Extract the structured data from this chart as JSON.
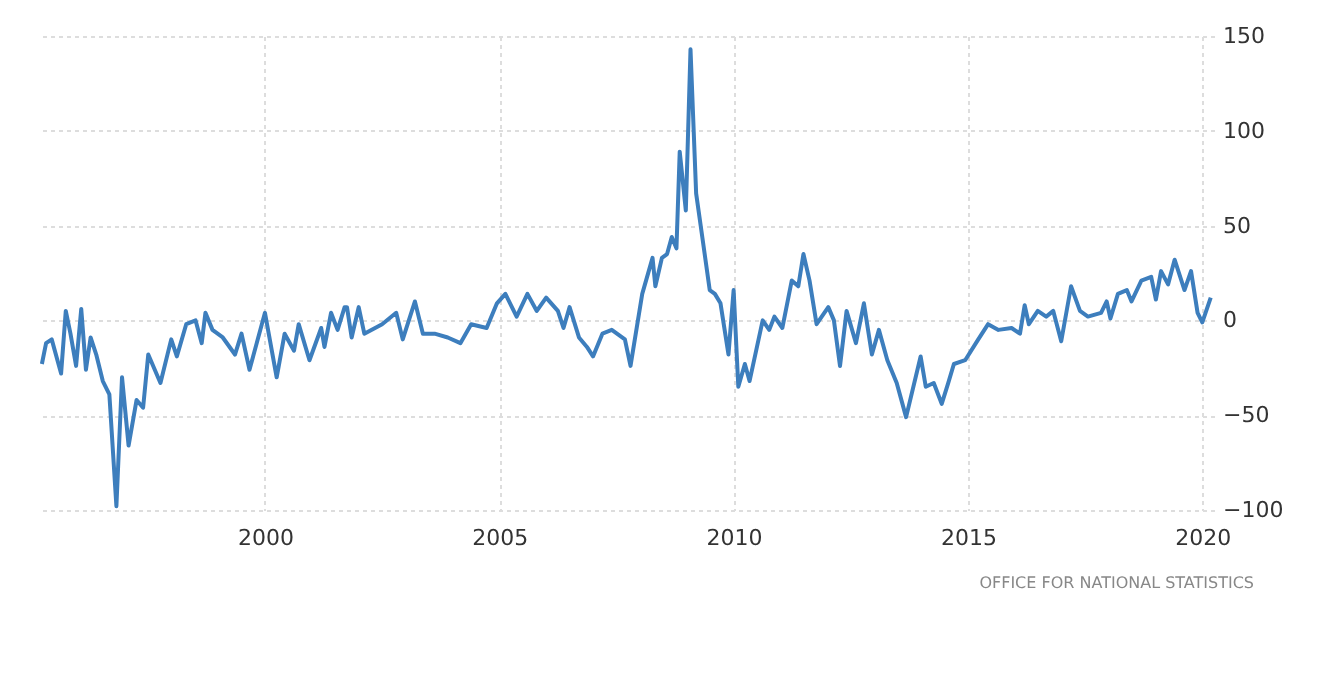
{
  "chart_data": {
    "type": "line",
    "x": [
      1995.24,
      1995.33,
      1995.45,
      1995.65,
      1995.75,
      1995.85,
      1995.97,
      1996.08,
      1996.18,
      1996.28,
      1996.4,
      1996.54,
      1996.68,
      1996.83,
      1996.95,
      1997.09,
      1997.26,
      1997.4,
      1997.51,
      1997.77,
      1998.0,
      1998.12,
      1998.32,
      1998.52,
      1998.65,
      1998.73,
      1998.88,
      1999.1,
      1999.36,
      1999.5,
      1999.67,
      2000.0,
      2000.25,
      2000.42,
      2000.62,
      2000.72,
      2000.95,
      2001.2,
      2001.27,
      2001.41,
      2001.55,
      2001.7,
      2001.75,
      2001.85,
      2002.0,
      2002.12,
      2002.5,
      2002.8,
      2002.94,
      2003.2,
      2003.37,
      2003.62,
      2003.9,
      2004.17,
      2004.4,
      2004.73,
      2004.95,
      2005.13,
      2005.37,
      2005.6,
      2005.8,
      2006.0,
      2006.25,
      2006.37,
      2006.5,
      2006.7,
      2006.87,
      2007.0,
      2007.2,
      2007.4,
      2007.68,
      2007.8,
      2008.05,
      2008.27,
      2008.33,
      2008.47,
      2008.58,
      2008.68,
      2008.78,
      2008.85,
      2008.98,
      2009.08,
      2009.2,
      2009.32,
      2009.49,
      2009.6,
      2009.72,
      2009.89,
      2010.0,
      2010.1,
      2010.24,
      2010.34,
      2010.62,
      2010.76,
      2010.87,
      2011.04,
      2011.24,
      2011.38,
      2011.49,
      2011.62,
      2011.77,
      2012.02,
      2012.14,
      2012.27,
      2012.41,
      2012.61,
      2012.78,
      2012.95,
      2013.1,
      2013.28,
      2013.48,
      2013.68,
      2013.99,
      2014.1,
      2014.27,
      2014.44,
      2014.58,
      2014.7,
      2014.94,
      2015.22,
      2015.43,
      2015.65,
      2015.93,
      2016.11,
      2016.21,
      2016.3,
      2016.49,
      2016.67,
      2016.82,
      2016.99,
      2017.2,
      2017.39,
      2017.56,
      2017.84,
      2017.96,
      2018.04,
      2018.2,
      2018.39,
      2018.49,
      2018.7,
      2018.91,
      2019.01,
      2019.12,
      2019.27,
      2019.41,
      2019.62,
      2019.76,
      2019.9,
      2020.0,
      2020.18
    ],
    "series": [
      {
        "color": "#3d7ebd",
        "values": [
          -23,
          -12,
          -10,
          -28,
          5,
          -7,
          -24,
          6,
          -26,
          -9,
          -18,
          -32,
          -39,
          -98,
          -30,
          -66,
          -42,
          -46,
          -18,
          -33,
          -10,
          -19,
          -2,
          0,
          -12,
          4,
          -5,
          -9,
          -18,
          -7,
          -26,
          4,
          -30,
          -7,
          -16,
          -2,
          -21,
          -4,
          -14,
          4,
          -5,
          7,
          7,
          -9,
          7,
          -7,
          -2,
          4,
          -10,
          10,
          -7,
          -7,
          -9,
          -12,
          -2,
          -4,
          9,
          14,
          2,
          14,
          5,
          12,
          5,
          -4,
          7,
          -9,
          -14,
          -19,
          -7,
          -5,
          -10,
          -24,
          14,
          33,
          18,
          33,
          35,
          44,
          38,
          89,
          58,
          143,
          67,
          46,
          16,
          14,
          9,
          -18,
          16,
          -35,
          -23,
          -32,
          0,
          -5,
          2,
          -4,
          21,
          18,
          35,
          21,
          -2,
          7,
          0,
          -24,
          5,
          -12,
          9,
          -18,
          -5,
          -21,
          -33,
          -51,
          -19,
          -35,
          -33,
          -44,
          -33,
          -23,
          -21,
          -10,
          -2,
          -5,
          -4,
          -7,
          8,
          -2,
          5,
          2,
          5,
          -11,
          18,
          5,
          2,
          4,
          10,
          1,
          14,
          16,
          10,
          21,
          23,
          11,
          26,
          19,
          32,
          16,
          26,
          4,
          -1,
          12
        ]
      }
    ],
    "xlim": [
      1995.2,
      2020.25
    ],
    "xticks": [
      2000,
      2005,
      2010,
      2015,
      2020
    ],
    "ylim": [
      -100,
      150
    ],
    "yticks": [
      -100,
      -50,
      0,
      50,
      100,
      150
    ],
    "grid": true,
    "line_style": "solid",
    "marker": "none",
    "annotations": [
      "OFFICE FOR NATIONAL STATISTICS"
    ]
  }
}
